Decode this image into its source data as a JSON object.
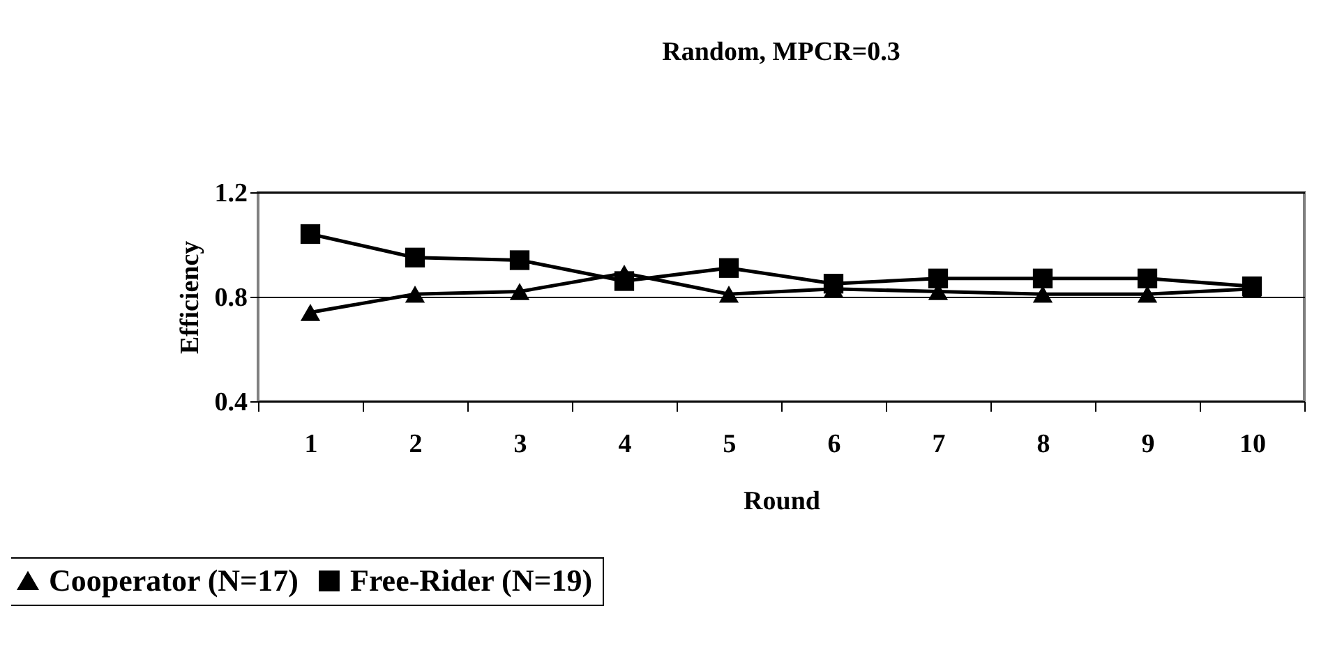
{
  "chart_data": {
    "type": "line",
    "title": "Random, MPCR=0.3",
    "xlabel": "Round",
    "ylabel": "Efficiency",
    "categories": [
      "1",
      "2",
      "3",
      "4",
      "5",
      "6",
      "7",
      "8",
      "9",
      "10"
    ],
    "series": [
      {
        "name": "Cooperator (N=17)",
        "color": "#000000",
        "marker": "triangle",
        "values": [
          0.74,
          0.81,
          0.82,
          0.89,
          0.81,
          0.83,
          0.82,
          0.81,
          0.81,
          0.83
        ]
      },
      {
        "name": "Free-Rider (N=19)",
        "color": "#000000",
        "marker": "square",
        "values": [
          1.04,
          0.95,
          0.94,
          0.86,
          0.91,
          0.85,
          0.87,
          0.87,
          0.87,
          0.84
        ]
      }
    ],
    "ylim": [
      0.4,
      1.2
    ],
    "yticks": [
      0.4,
      0.8,
      1.2
    ],
    "grid": "y",
    "legend": "bottom left",
    "line_style": "solid"
  }
}
